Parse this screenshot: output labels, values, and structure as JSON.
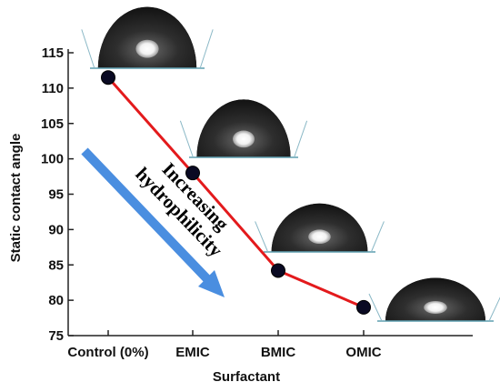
{
  "chart_data": {
    "type": "line",
    "title": "",
    "xlabel": "Surfactant",
    "ylabel": "Static contact angle",
    "categories": [
      "Control (0%)",
      "EMIC",
      "BMIC",
      "OMIC"
    ],
    "values": [
      111.5,
      98.0,
      84.2,
      79.0
    ],
    "ylim": [
      75,
      115
    ],
    "yticks": [
      75,
      80,
      85,
      90,
      95,
      100,
      105,
      110,
      115
    ],
    "grid": false,
    "legend": "none",
    "colors": {
      "line": "#e31a1c",
      "marker": "#0a0a23",
      "arrow": "#4a8ee0",
      "droplet": "#232323"
    },
    "annotation": {
      "lines": [
        "Increasing",
        "hydrophilicity"
      ],
      "arrow_direction": "down-right"
    },
    "droplet_images": [
      "droplet-icon",
      "droplet-icon",
      "droplet-icon",
      "droplet-icon"
    ]
  }
}
